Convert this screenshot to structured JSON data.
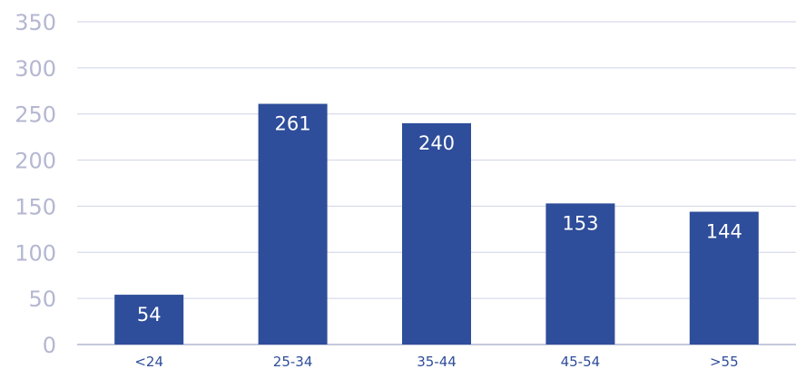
{
  "chart_data": {
    "type": "bar",
    "title": "",
    "xlabel": "",
    "ylabel": "",
    "categories": [
      "<24",
      "25-34",
      "35-44",
      "45-54",
      ">55"
    ],
    "values": [
      54,
      261,
      240,
      153,
      144
    ],
    "ylim": [
      0,
      350
    ],
    "yticks": [
      0,
      50,
      100,
      150,
      200,
      250,
      300,
      350
    ],
    "grid": true,
    "data_labels": true,
    "colors": {
      "bar": "#2e4d9a",
      "grid": "#cfd2e6",
      "ytick": "#b4b7d1",
      "xtick": "#2e4d9a",
      "data_label": "#ffffff"
    }
  }
}
